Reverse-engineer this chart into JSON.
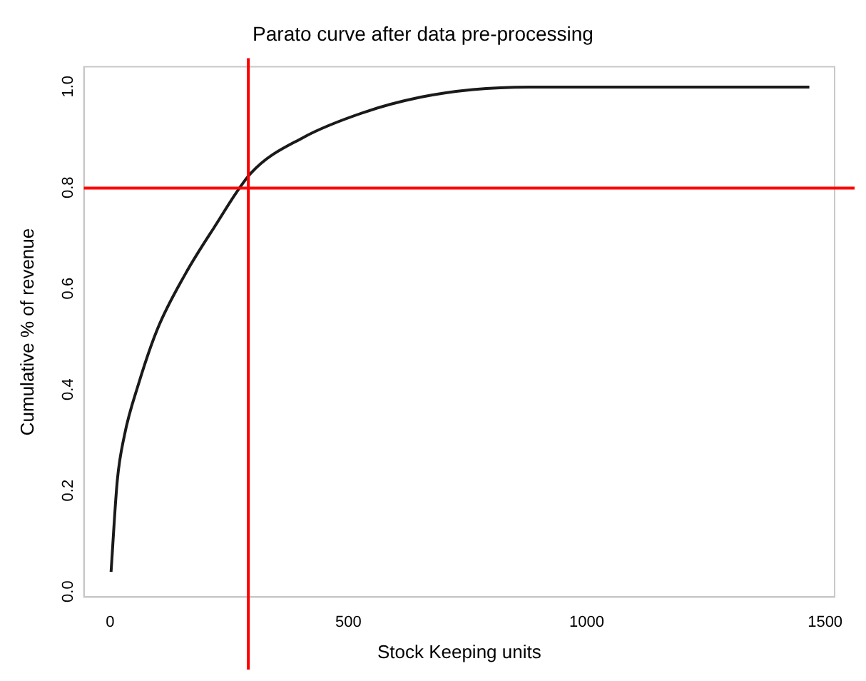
{
  "chart_data": {
    "type": "line",
    "title": "Parato curve after data pre-processing",
    "xlabel": "Stock Keeping units",
    "ylabel": "Cumulative % of revenue",
    "x": [
      2,
      15,
      30,
      59,
      99,
      158,
      217,
      296,
      405,
      533,
      652,
      761,
      879,
      1467
    ],
    "series": [
      {
        "color": "#1a1a1a",
        "values": [
          0.04,
          0.22,
          0.31,
          0.41,
          0.52,
          0.63,
          0.72,
          0.83,
          0.9,
          0.95,
          0.98,
          0.995,
          1.0,
          1.0
        ]
      }
    ],
    "xlim": [
      -55,
      1520
    ],
    "ylim": [
      -0.01,
      1.04
    ],
    "xticks": [
      0,
      500,
      1000,
      1500
    ],
    "yticks": [
      {
        "value": 0,
        "label": "0.0"
      },
      0.2,
      0.4,
      0.6,
      0.8,
      {
        "value": 1,
        "label": "1.0"
      }
    ],
    "ref_lines": [
      {
        "axis": "x",
        "value": 290,
        "color": "#ff0000"
      },
      {
        "axis": "y",
        "value": 0.8,
        "color": "#ff0000"
      }
    ],
    "grid": false,
    "legend": false,
    "marker": "none",
    "line_style": "solid"
  }
}
